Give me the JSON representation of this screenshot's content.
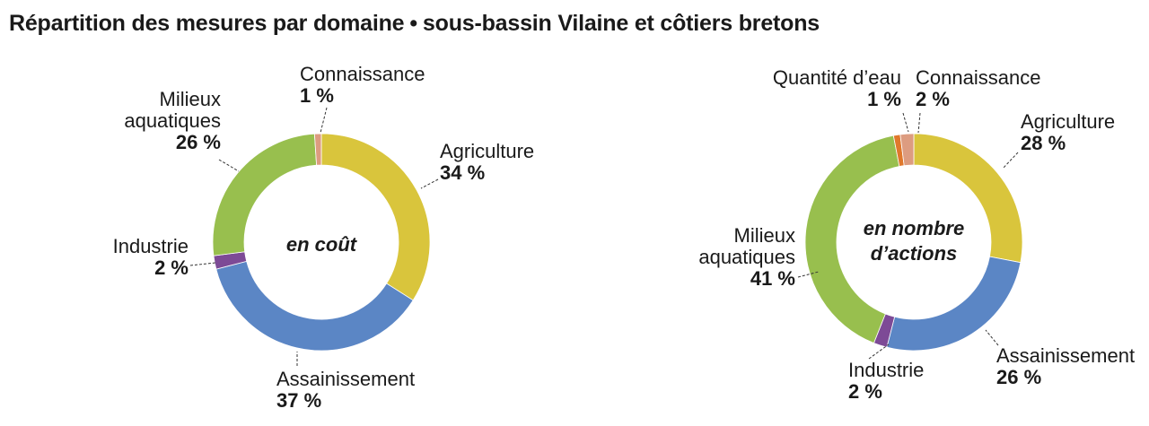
{
  "header": {
    "title_main": "Répartition des mesures par domaine",
    "separator": "•",
    "title_sub": "sous-bassin Vilaine et côtiers bretons"
  },
  "colors": {
    "agriculture": "#d9c53c",
    "assainissement": "#5b86c5",
    "industrie": "#7d4a96",
    "milieux": "#98bf4e",
    "connaissance": "#dd9c80",
    "quantite": "#e0782c"
  },
  "chart_data": [
    {
      "type": "pie",
      "center_label": [
        "en coût"
      ],
      "slices": [
        {
          "key": "agriculture",
          "name": [
            "Agriculture"
          ],
          "value": 34,
          "pct": "34 %"
        },
        {
          "key": "assainissement",
          "name": [
            "Assainissement"
          ],
          "value": 37,
          "pct": "37 %"
        },
        {
          "key": "industrie",
          "name": [
            "Industrie"
          ],
          "value": 2,
          "pct": "2 %"
        },
        {
          "key": "milieux",
          "name": [
            "Milieux",
            "aquatiques"
          ],
          "value": 26,
          "pct": "26 %"
        },
        {
          "key": "connaissance",
          "name": [
            "Connaissance"
          ],
          "value": 1,
          "pct": "1 %"
        }
      ]
    },
    {
      "type": "pie",
      "center_label": [
        "en nombre",
        "d’actions"
      ],
      "slices": [
        {
          "key": "agriculture",
          "name": [
            "Agriculture"
          ],
          "value": 28,
          "pct": "28 %"
        },
        {
          "key": "assainissement",
          "name": [
            "Assainissement"
          ],
          "value": 26,
          "pct": "26 %"
        },
        {
          "key": "industrie",
          "name": [
            "Industrie"
          ],
          "value": 2,
          "pct": "2 %"
        },
        {
          "key": "milieux",
          "name": [
            "Milieux",
            "aquatiques"
          ],
          "value": 41,
          "pct": "41 %"
        },
        {
          "key": "quantite",
          "name": [
            "Quantité d’eau"
          ],
          "value": 1,
          "pct": "1 %"
        },
        {
          "key": "connaissance",
          "name": [
            "Connaissance"
          ],
          "value": 2,
          "pct": "2 %"
        }
      ]
    }
  ]
}
